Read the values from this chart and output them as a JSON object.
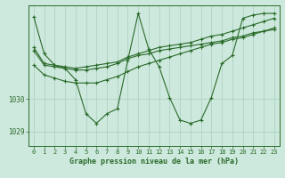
{
  "background_color": "#cde8dc",
  "grid_color": "#a8cfc0",
  "line_color": "#2a6b2a",
  "title": "Graphe pression niveau de la mer (hPa)",
  "ylim": [
    1028.55,
    1032.9
  ],
  "xlim": [
    -0.5,
    23.5
  ],
  "yticks": [
    1029,
    1030
  ],
  "xticks": [
    0,
    1,
    2,
    3,
    4,
    5,
    6,
    7,
    8,
    9,
    10,
    11,
    12,
    13,
    14,
    15,
    16,
    17,
    18,
    19,
    20,
    21,
    22,
    23
  ],
  "series": [
    [
      1032.55,
      1031.4,
      1031.05,
      1030.95,
      1030.6,
      1029.55,
      1029.25,
      1029.55,
      1029.7,
      1031.2,
      1032.65,
      1031.55,
      1031.0,
      1030.05,
      1029.35,
      1029.25,
      1029.35,
      1030.05,
      1031.1,
      1031.35,
      1032.5,
      1032.6,
      1032.65,
      1032.65
    ],
    [
      1031.6,
      1031.1,
      1031.05,
      1031.0,
      1030.95,
      1031.0,
      1031.05,
      1031.1,
      1031.15,
      1031.3,
      1031.4,
      1031.5,
      1031.6,
      1031.65,
      1031.7,
      1031.75,
      1031.85,
      1031.95,
      1032.0,
      1032.1,
      1032.2,
      1032.3,
      1032.4,
      1032.5
    ],
    [
      1031.5,
      1031.05,
      1031.0,
      1030.95,
      1030.9,
      1030.9,
      1030.95,
      1031.0,
      1031.1,
      1031.25,
      1031.35,
      1031.4,
      1031.5,
      1031.55,
      1031.6,
      1031.65,
      1031.7,
      1031.75,
      1031.8,
      1031.9,
      1031.95,
      1032.05,
      1032.1,
      1032.15
    ],
    [
      1031.05,
      1030.75,
      1030.65,
      1030.55,
      1030.5,
      1030.5,
      1030.5,
      1030.6,
      1030.7,
      1030.85,
      1031.0,
      1031.1,
      1031.2,
      1031.3,
      1031.4,
      1031.5,
      1031.6,
      1031.7,
      1031.75,
      1031.85,
      1031.9,
      1032.0,
      1032.1,
      1032.2
    ]
  ]
}
